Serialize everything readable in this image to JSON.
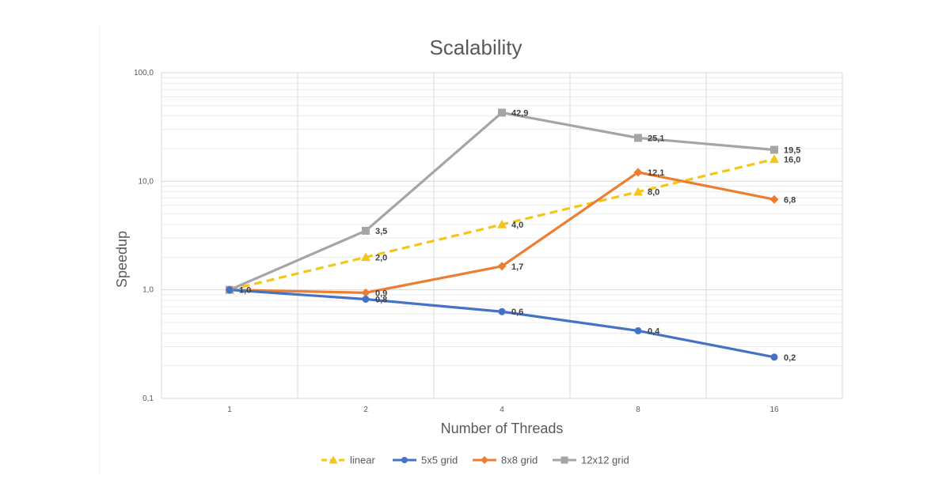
{
  "chart_data": {
    "type": "line",
    "title": "Scalability",
    "xlabel": "Number of Threads",
    "ylabel": "Speedup",
    "y_scale": "log10",
    "ylim": [
      0.1,
      100
    ],
    "y_ticks": [
      "0,1",
      "1,0",
      "10,0",
      "100,0"
    ],
    "categories": [
      "1",
      "2",
      "4",
      "8",
      "16"
    ],
    "grid": true,
    "legend_position": "bottom",
    "series": [
      {
        "name": "linear",
        "values": [
          1.0,
          2.0,
          4.0,
          8.0,
          16.0
        ],
        "labels": [
          "1,0",
          "2,0",
          "4,0",
          "8,0",
          "16,0"
        ],
        "color": "#F5C518",
        "dashed": true,
        "marker": "triangle"
      },
      {
        "name": "5x5 grid",
        "values": [
          1.0,
          0.82,
          0.63,
          0.42,
          0.24
        ],
        "labels": [
          "",
          "0,8",
          "0,6",
          "0,4",
          "0,2"
        ],
        "color": "#4472C4",
        "dashed": false,
        "marker": "circle"
      },
      {
        "name": "8x8 grid",
        "values": [
          1.0,
          0.94,
          1.65,
          12.1,
          6.8
        ],
        "labels": [
          "",
          "0,9",
          "1,7",
          "12,1",
          "6,8"
        ],
        "color": "#ED7D31",
        "dashed": false,
        "marker": "diamond"
      },
      {
        "name": "12x12 grid",
        "values": [
          1.0,
          3.5,
          42.9,
          25.1,
          19.5
        ],
        "labels": [
          "",
          "3,5",
          "42,9",
          "25,1",
          "19,5"
        ],
        "color": "#A5A5A5",
        "dashed": false,
        "marker": "square"
      }
    ]
  }
}
